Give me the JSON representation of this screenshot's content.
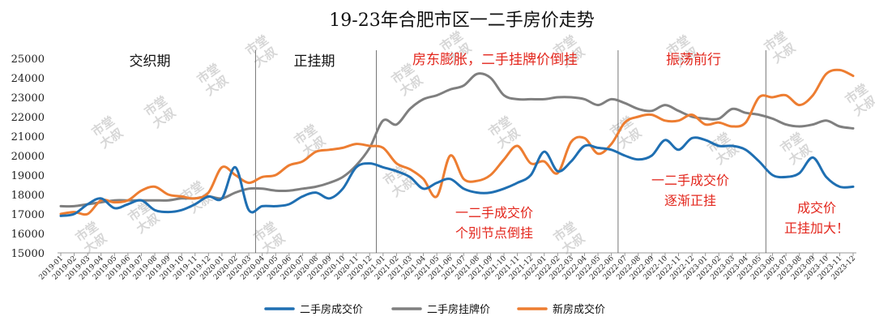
{
  "chart_data": {
    "type": "line",
    "title": "19-23年合肥市区一二手房价走势",
    "ylim": [
      15000,
      25000
    ],
    "yticks": [
      15000,
      16000,
      17000,
      18000,
      19000,
      20000,
      21000,
      22000,
      23000,
      24000,
      25000
    ],
    "grid": false,
    "legend_position": "bottom",
    "x": [
      "2019-01",
      "2019-02",
      "2019-03",
      "2019-04",
      "2019-05",
      "2019-06",
      "2019-07",
      "2019-08",
      "2019-09",
      "2019-10",
      "2019-11",
      "2019-12",
      "2020-01",
      "2020-02",
      "2020-03",
      "2020-04",
      "2020-05",
      "2020-06",
      "2020-07",
      "2020-08",
      "2020-09",
      "2020-10",
      "2020-11",
      "2020-12",
      "2021-01",
      "2021-02",
      "2021-03",
      "2021-04",
      "2021-05",
      "2021-06",
      "2021-07",
      "2021-08",
      "2021-09",
      "2021-10",
      "2021-11",
      "2021-12",
      "2022-01",
      "2022-02",
      "2022-03",
      "2022-04",
      "2022-05",
      "2022-06",
      "2022-07",
      "2022-08",
      "2022-09",
      "2022-10",
      "2022-11",
      "2022-12",
      "2023-01",
      "2023-02",
      "2023-03",
      "2023-04",
      "2023-05",
      "2023-06",
      "2023-07",
      "2023-08",
      "2023-09",
      "2023-10",
      "2023-11",
      "2023-12"
    ],
    "series": [
      {
        "name": "二手房成交价",
        "color": "#1f6fb2",
        "values": [
          16900,
          17000,
          17500,
          17800,
          17300,
          17500,
          17700,
          17200,
          17100,
          17200,
          17500,
          17900,
          17800,
          19400,
          17200,
          17400,
          17400,
          17500,
          17900,
          18100,
          17800,
          18300,
          19400,
          19600,
          19400,
          19200,
          18900,
          18300,
          18600,
          18800,
          18300,
          18100,
          18100,
          18300,
          18600,
          19000,
          20200,
          19200,
          19700,
          20500,
          20400,
          20300,
          20000,
          19800,
          20000,
          20800,
          20300,
          20900,
          20800,
          20500,
          20500,
          20300,
          19700,
          19000,
          18900,
          19100,
          19900,
          18900,
          18400,
          18400
        ]
      },
      {
        "name": "二手房挂牌价",
        "color": "#7f7f7f",
        "values": [
          17400,
          17400,
          17500,
          17600,
          17700,
          17700,
          17700,
          17700,
          17700,
          17800,
          17800,
          17900,
          17800,
          18100,
          18300,
          18300,
          18200,
          18200,
          18300,
          18400,
          18600,
          18900,
          19500,
          20400,
          21800,
          21600,
          22400,
          22900,
          23100,
          23400,
          23600,
          24200,
          24000,
          23100,
          22900,
          22900,
          22900,
          23000,
          23000,
          22900,
          22600,
          22900,
          22700,
          22400,
          22300,
          22600,
          22300,
          22000,
          21900,
          21900,
          22400,
          22200,
          22100,
          21900,
          21600,
          21500,
          21600,
          21800,
          21500,
          21400
        ]
      },
      {
        "name": "新房成交价",
        "color": "#ed7d31",
        "values": [
          17000,
          17100,
          17000,
          17700,
          17600,
          17700,
          18200,
          18400,
          18000,
          17900,
          17800,
          18100,
          19400,
          19000,
          18600,
          18900,
          19000,
          19500,
          19700,
          20200,
          20300,
          20400,
          20600,
          20500,
          20400,
          19600,
          19300,
          18800,
          17900,
          20000,
          18800,
          18700,
          19000,
          19800,
          20500,
          19600,
          19700,
          19100,
          20700,
          20900,
          20100,
          20600,
          21700,
          22000,
          22100,
          21800,
          21800,
          22100,
          21600,
          21700,
          21500,
          21700,
          23000,
          23000,
          23100,
          22600,
          23100,
          24200,
          24400,
          24100
        ]
      }
    ],
    "phase_labels": [
      {
        "text": "交织期",
        "color": "#111111"
      },
      {
        "text": "正挂期",
        "color": "#111111"
      },
      {
        "text": "房东膨胀，二手挂牌价倒挂",
        "color": "#e3271d"
      },
      {
        "text": "振荡前行",
        "color": "#e3271d"
      }
    ],
    "annotations": [
      {
        "lines": [
          "一二手成交价",
          "个别节点倒挂"
        ]
      },
      {
        "lines": [
          "一二手成交价",
          "逐渐正挂"
        ]
      },
      {
        "lines": [
          "成交价",
          "正挂加大！"
        ]
      }
    ],
    "watermark": [
      "市堂",
      "大叔"
    ]
  }
}
